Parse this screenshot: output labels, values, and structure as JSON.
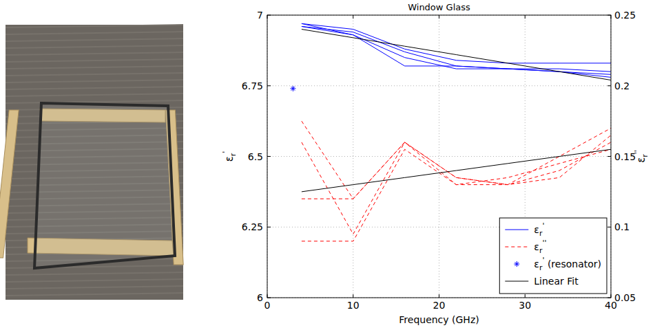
{
  "chart_data": {
    "type": "line",
    "title": "Window Glass",
    "xlabel": "Frequency (GHz)",
    "ylabel": "εr'",
    "y2label": "εr''",
    "x": [
      4,
      10,
      16,
      22,
      28,
      34,
      40
    ],
    "xlim": [
      0,
      40
    ],
    "xticks": [
      0,
      10,
      20,
      30,
      40
    ],
    "ylim": [
      6,
      7
    ],
    "yticks": [
      6,
      6.25,
      6.5,
      6.75,
      7
    ],
    "y2lim": [
      0.05,
      0.25
    ],
    "y2ticks": [
      0.05,
      0.1,
      0.15,
      0.2,
      0.25
    ],
    "grid": true,
    "legend": "lower right",
    "series": [
      {
        "name": "εr'",
        "color": "#0000ff",
        "line_style": "solid",
        "values": [
          6.97,
          6.95,
          6.88,
          6.84,
          6.83,
          6.83,
          6.83
        ]
      },
      {
        "color": "#0000ff",
        "line_style": "solid",
        "values": [
          6.97,
          6.93,
          6.85,
          6.81,
          6.81,
          6.81,
          6.8
        ]
      },
      {
        "color": "#0000ff",
        "line_style": "solid",
        "values": [
          6.96,
          6.93,
          6.82,
          6.82,
          6.81,
          6.8,
          6.79
        ]
      },
      {
        "color": "#0000ff",
        "line_style": "solid",
        "values": [
          6.96,
          6.94,
          6.87,
          6.82,
          6.81,
          6.8,
          6.78
        ]
      },
      {
        "name": "εr''",
        "color": "#ff0000",
        "line_style": "dashed",
        "axis": "y2",
        "values": [
          0.175,
          0.12,
          0.16,
          0.13,
          0.13,
          0.14,
          0.16
        ]
      },
      {
        "color": "#ff0000",
        "line_style": "dashed",
        "axis": "y2",
        "values": [
          0.12,
          0.12,
          0.16,
          0.135,
          0.13,
          0.15,
          0.17
        ]
      },
      {
        "color": "#ff0000",
        "line_style": "dashed",
        "axis": "y2",
        "values": [
          0.09,
          0.09,
          0.155,
          0.13,
          0.135,
          0.145,
          0.155
        ]
      },
      {
        "color": "#ff0000",
        "line_style": "dashed",
        "axis": "y2",
        "values": [
          0.16,
          0.095,
          0.16,
          0.135,
          0.13,
          0.135,
          0.165
        ]
      },
      {
        "name": "εr' (resonator)",
        "type": "scatter",
        "marker": "asterisk",
        "color": "#0000ff",
        "x": [
          3
        ],
        "values": [
          6.74
        ]
      },
      {
        "name": "Linear Fit",
        "color": "#000000",
        "line_style": "solid",
        "values": [
          6.95,
          6.92,
          6.89,
          6.86,
          6.83,
          6.8,
          6.77
        ]
      },
      {
        "color": "#000000",
        "line_style": "solid",
        "axis": "y2",
        "values": [
          0.125,
          0.13,
          0.135,
          0.14,
          0.145,
          0.15,
          0.155
        ]
      }
    ]
  }
}
